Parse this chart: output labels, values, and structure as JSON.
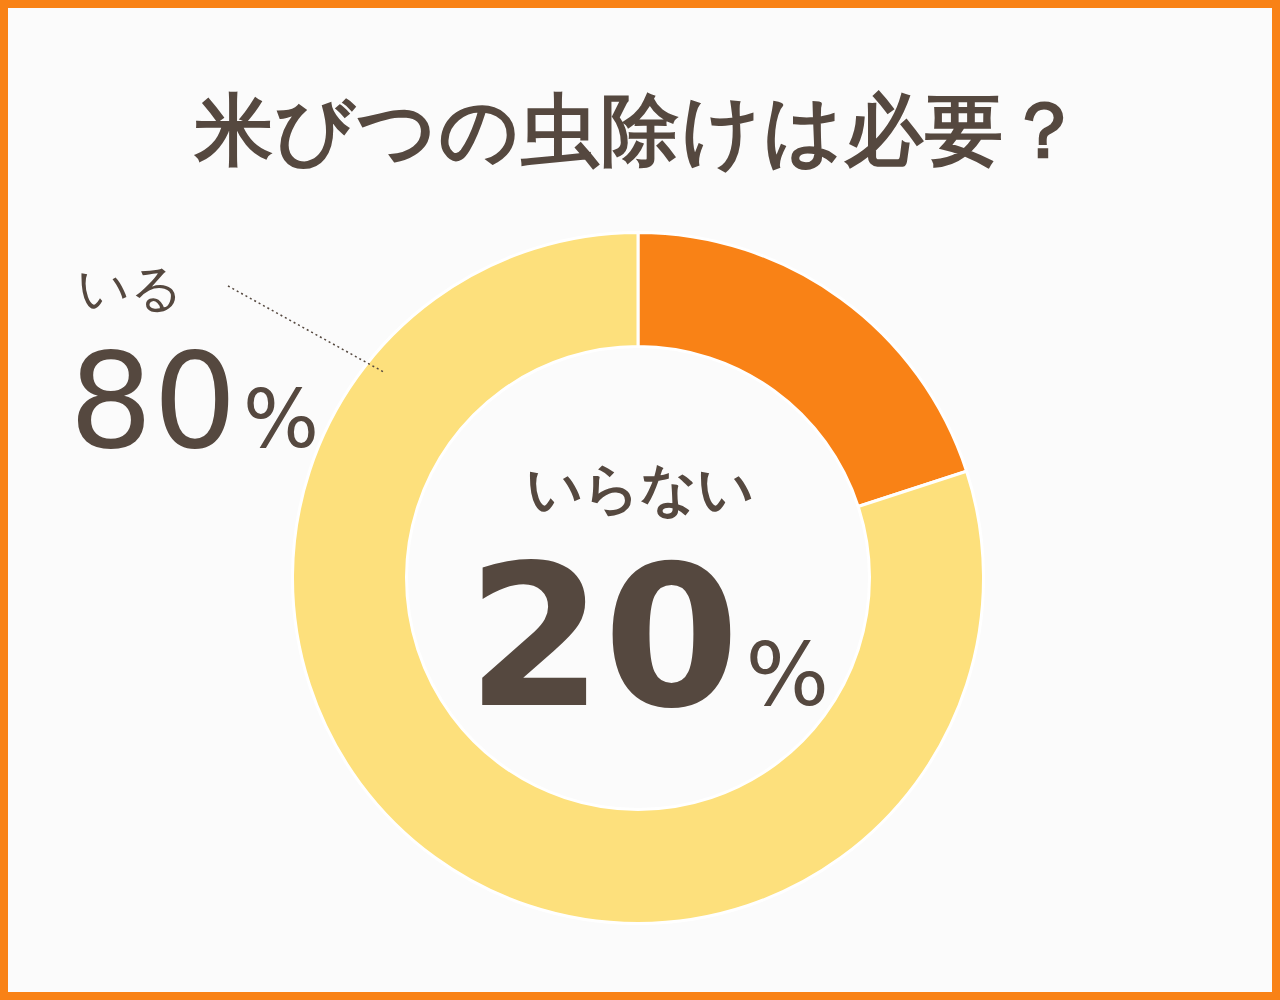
{
  "chart_data": {
    "type": "donut",
    "title": "米びつの虫除けは必要？",
    "categories": [
      "いらない",
      "いる"
    ],
    "values": [
      20,
      80
    ],
    "colors": [
      "#f98216",
      "#fde07c"
    ],
    "value_labels": [
      "20%",
      "80%"
    ]
  }
}
